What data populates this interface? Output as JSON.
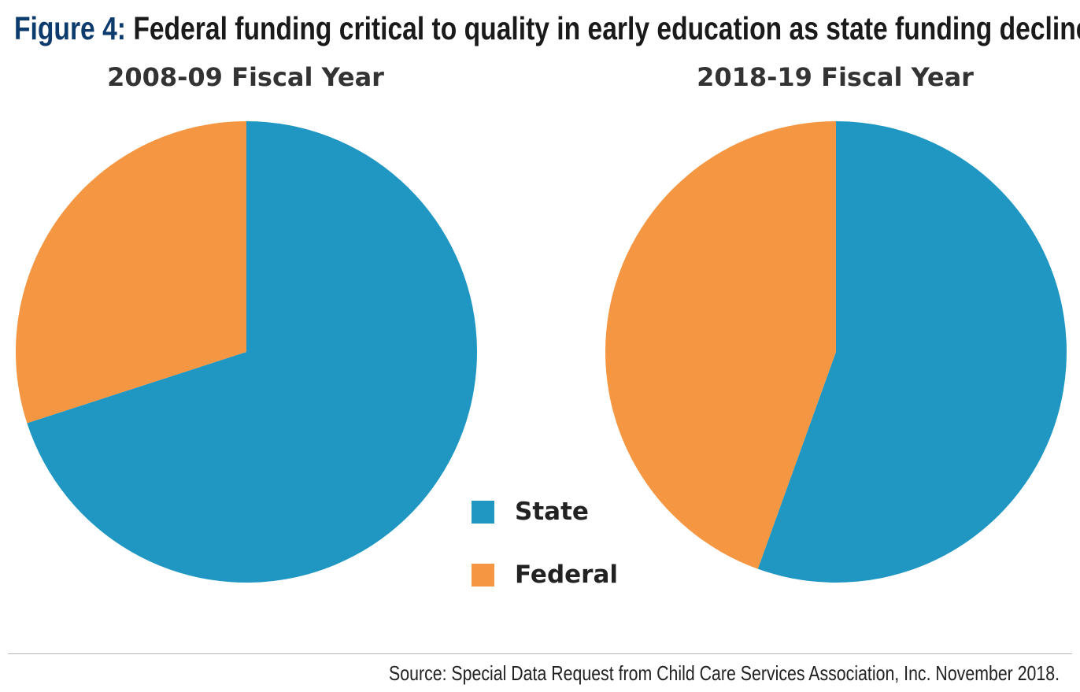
{
  "figure": {
    "label": "Figure 4:",
    "title": " Federal funding critical to quality in early education as state funding declines."
  },
  "colors": {
    "state": "#2097c3",
    "federal": "#f59642"
  },
  "legend": [
    {
      "label": "State",
      "color": "#2097c3"
    },
    {
      "label": "Federal",
      "color": "#f59642"
    }
  ],
  "chart_data": [
    {
      "type": "pie",
      "title": "2008-09 Fiscal Year",
      "labels": [
        "State",
        "Federal"
      ],
      "values": [
        70.0,
        30.0
      ],
      "units": "percent (estimated)"
    },
    {
      "type": "pie",
      "title": "2018-19 Fiscal Year",
      "labels": [
        "State",
        "Federal"
      ],
      "values": [
        55.5,
        44.5
      ],
      "units": "percent (estimated)"
    }
  ],
  "source": "Source:  Special Data Request from Child Care Services Association, Inc. November 2018."
}
